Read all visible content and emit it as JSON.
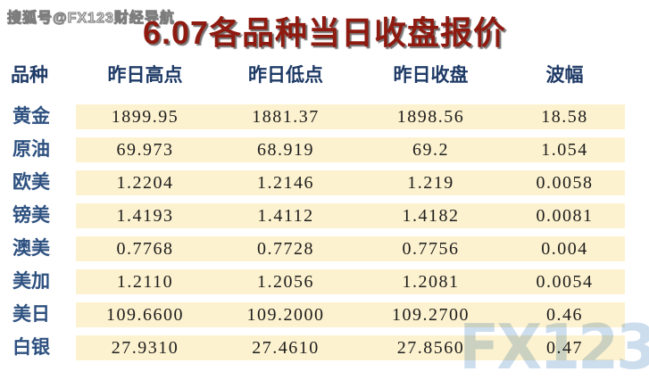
{
  "watermarks": {
    "top_left": "搜狐号@FX123财经导航",
    "bottom_right_logo": "FX123"
  },
  "chart_data": {
    "type": "table",
    "title": "6.07各品种当日收盘报价",
    "columns": [
      "品种",
      "昨日高点",
      "昨日低点",
      "昨日收盘",
      "波幅"
    ],
    "rows": [
      [
        "黄金",
        "1899.95",
        "1881.37",
        "1898.56",
        "18.58"
      ],
      [
        "原油",
        "69.973",
        "68.919",
        "69.2",
        "1.054"
      ],
      [
        "欧美",
        "1.2204",
        "1.2146",
        "1.219",
        "0.0058"
      ],
      [
        "镑美",
        "1.4193",
        "1.4112",
        "1.4182",
        "0.0081"
      ],
      [
        "澳美",
        "0.7768",
        "0.7728",
        "0.7756",
        "0.004"
      ],
      [
        "美加",
        "1.2110",
        "1.2056",
        "1.2081",
        "0.0054"
      ],
      [
        "美日",
        "109.6600",
        "109.2000",
        "109.2700",
        "0.46"
      ],
      [
        "白银",
        "27.9310",
        "27.4610",
        "27.8560",
        "0.47"
      ]
    ],
    "layout": {
      "row_band_color": "#fdf2cf",
      "grid": "off",
      "header_position": "top"
    }
  },
  "colors": {
    "title": "#8e1a10",
    "header_text": "#1e3a66",
    "row_label_text": "#2e5180",
    "band_background": "#fdf2cf",
    "number_text": "#1c1c1c",
    "logo_watermark": "#c9dbee",
    "page_background": "#ffffff"
  }
}
